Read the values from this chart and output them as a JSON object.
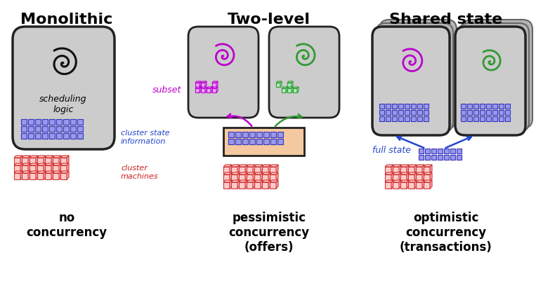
{
  "bg_color": "#ffffff",
  "title_monolithic": "Monolithic",
  "title_twolevel": "Two-level",
  "title_shared": "Shared state",
  "label_no_conc": "no\nconcurrency",
  "label_pess_conc": "pessimistic\nconcurrency\n(offers)",
  "label_opt_conc": "optimistic\nconcurrency\n(transactions)",
  "label_subset": "subset",
  "label_cluster_state": "cluster state\ninformation",
  "label_cluster_machines": "cluster\nmachines",
  "label_full_state": "full state",
  "spiral_color_black": "#111111",
  "spiral_color_purple": "#bb00cc",
  "spiral_color_green": "#339933",
  "blue_grid_color": "#3333bb",
  "blue_grid_fill": "#9999ee",
  "red_machine_color": "#cc3333",
  "red_machine_fill": "#ffbbbb",
  "box_fill": "#cccccc",
  "box_edge": "#222222",
  "peach_fill": "#f5c9a0",
  "peach_edge": "#222222",
  "arrow_purple": "#bb00cc",
  "arrow_green": "#339933",
  "arrow_blue": "#2244cc",
  "text_blue": "#2244cc",
  "text_red": "#cc2222",
  "text_purple": "#bb00cc",
  "text_black": "#000000"
}
